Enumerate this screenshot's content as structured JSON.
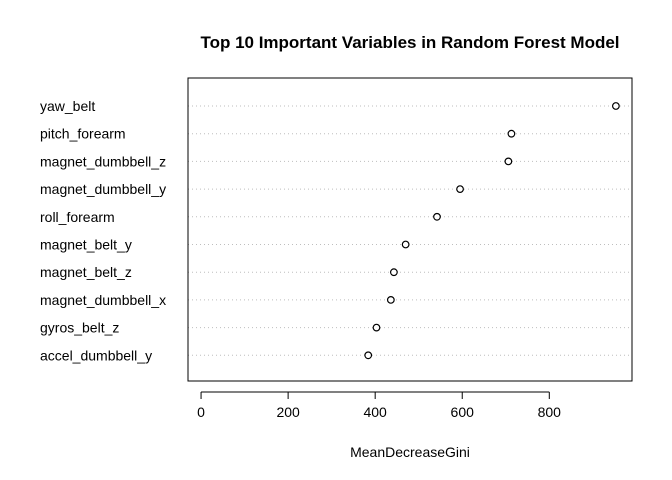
{
  "chart_data": {
    "type": "scatter",
    "title": "Top 10 Important Variables in Random Forest Model",
    "xlabel": "MeanDecreaseGini",
    "ylabel": "",
    "xlim": [
      -30,
      990
    ],
    "xticks": [
      0,
      200,
      400,
      600,
      800
    ],
    "grid": "horizontal dotted",
    "categories": [
      "yaw_belt",
      "pitch_forearm",
      "magnet_dumbbell_z",
      "magnet_dumbbell_y",
      "roll_forearm",
      "magnet_belt_y",
      "magnet_belt_z",
      "magnet_dumbbell_x",
      "gyros_belt_z",
      "accel_dumbbell_y"
    ],
    "values": [
      953,
      713,
      706,
      595,
      542,
      470,
      443,
      436,
      403,
      384
    ]
  }
}
